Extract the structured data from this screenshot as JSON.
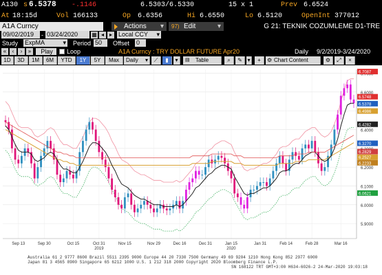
{
  "ticker": {
    "symbol": "A130",
    "last_prefix": "s",
    "last": "6.5378",
    "change": "-.1146",
    "bid_ask": "6.5303/6.5330",
    "size": "15 x 1",
    "prev_label": "Prev",
    "prev": "6.6524",
    "time_prefix": "At",
    "time": "18:15d",
    "vol_label": "Vol",
    "vol": "166133",
    "open_label": "Op",
    "open": "6.6356",
    "high_label": "Hi",
    "high": "6.6550",
    "low_label": "Lo",
    "low": "6.5120",
    "oi_label": "OpenInt",
    "oi": "377012"
  },
  "toolbar": {
    "security": "A1A Curncy",
    "actions_label": "Actions",
    "edit_prefix": "97)",
    "edit_label": "Edit",
    "function_title": "G 21: TEKNIK COZUMLEME D1-TRE"
  },
  "dates": {
    "start": "09/02/2019",
    "end": "03/24/2020",
    "currency": "Local CCY"
  },
  "study": {
    "label": "Study",
    "value": "ExpMA",
    "period_label": "Period",
    "period": "50",
    "offset_label": "Offset",
    "offset": "0"
  },
  "playback": {
    "play_label": "Play",
    "loop_label": "Loop",
    "subtitle": "A1A Curncy : TRY DOLLAR FUTURE Apr20",
    "freq": "Daily",
    "range": "9/2/2019-3/24/2020"
  },
  "tabs": {
    "periods": [
      "1D",
      "3D",
      "1M",
      "6M",
      "YTD",
      "1Y",
      "5Y",
      "Max"
    ],
    "selected": "1Y",
    "freq": "Daily",
    "table_label": "Table",
    "chart_content_label": "Chart Content"
  },
  "chart_data": {
    "type": "line",
    "y_ticks": [
      "6.7000",
      "6.6000",
      "6.5000",
      "6.4000",
      "6.3000",
      "6.2000",
      "6.1000",
      "6.0000",
      "5.9000",
      "5.8000"
    ],
    "ylim": [
      5.82,
      6.72
    ],
    "x_labels": [
      "Sep 13",
      "Sep 30",
      "Oct 15",
      "Oct 31",
      "Nov 15",
      "Nov 29",
      "Dec 16",
      "Dec 31",
      "Jan 15",
      "Jan 31",
      "Feb 14",
      "Feb 28",
      "Mar 16"
    ],
    "x_year_labels": [
      {
        "at": "Oct 31",
        "text": "2019"
      },
      {
        "at": "Jan 15",
        "text": "2020"
      }
    ],
    "price_labels": [
      {
        "value": "6.7087",
        "color": "#e03030"
      },
      {
        "value": "6.5748",
        "color": "#e03030"
      },
      {
        "value": "6.5378",
        "color": "#2060c0"
      },
      {
        "value": "6.4986",
        "color": "#d8a030"
      },
      {
        "value": "6.4282",
        "color": "#222222"
      },
      {
        "value": "6.3270",
        "color": "#2060c0"
      },
      {
        "value": "6.2829",
        "color": "#d04040"
      },
      {
        "value": "6.2527",
        "color": "#d8a030"
      },
      {
        "value": "6.2233",
        "color": "#c08020"
      },
      {
        "value": "6.0621",
        "color": "#20a040"
      }
    ],
    "price_label_y": [
      6.7087,
      6.5748,
      6.5378,
      6.4986,
      6.4282,
      6.327,
      6.2829,
      6.2527,
      6.2233,
      6.0621
    ],
    "closes": [
      6.44,
      6.4,
      6.3,
      6.24,
      6.22,
      6.26,
      6.3,
      6.28,
      6.22,
      6.14,
      6.2,
      6.26,
      6.3,
      6.34,
      6.3,
      6.24,
      6.16,
      6.12,
      6.14,
      6.18,
      6.16,
      6.14,
      6.18,
      6.28,
      6.34,
      6.4,
      6.44,
      6.4,
      6.34,
      6.28,
      6.24,
      6.2,
      6.14,
      6.08,
      6.04,
      6.0,
      5.98,
      6.04,
      6.06,
      6.0,
      5.96,
      5.98,
      6.0,
      6.02,
      6.0,
      5.98,
      5.96,
      5.98,
      6.0,
      5.98,
      5.97,
      5.98,
      6.0,
      6.02,
      5.98,
      6.02,
      6.08,
      6.12,
      6.14,
      6.18,
      6.16,
      6.16,
      6.2,
      6.24,
      6.22,
      6.24,
      6.26,
      6.25,
      6.22,
      6.18,
      6.14,
      6.06,
      6.04,
      6.0,
      5.98,
      6.04,
      6.08,
      6.08,
      6.1,
      6.12,
      6.12,
      6.1,
      6.14,
      6.18,
      6.22,
      6.26,
      6.22,
      6.18,
      6.24,
      6.28,
      6.26,
      6.24,
      6.3,
      6.32,
      6.3,
      6.34,
      6.28,
      6.22,
      6.18,
      6.2,
      6.26,
      6.32,
      6.4,
      6.48,
      6.58,
      6.62,
      6.64,
      6.56,
      6.54
    ],
    "ema_slow": [
      6.4,
      6.39,
      6.38,
      6.37,
      6.36,
      6.35,
      6.34,
      6.33,
      6.32,
      6.31,
      6.3,
      6.29,
      6.28,
      6.27,
      6.26,
      6.25,
      6.24,
      6.24,
      6.23,
      6.23,
      6.22,
      6.22,
      6.21,
      6.21,
      6.21,
      6.21,
      6.21,
      6.21,
      6.21,
      6.21,
      6.21,
      6.21,
      6.21,
      6.21,
      6.21,
      6.21,
      6.21,
      6.21,
      6.21,
      6.21,
      6.21,
      6.21,
      6.21,
      6.21,
      6.21,
      6.21,
      6.21,
      6.21,
      6.21,
      6.21,
      6.21,
      6.21,
      6.21,
      6.21,
      6.21,
      6.21,
      6.21,
      6.21,
      6.22,
      6.22,
      6.22,
      6.22,
      6.22,
      6.22,
      6.23,
      6.23,
      6.23,
      6.23,
      6.23,
      6.23,
      6.23,
      6.22,
      6.22,
      6.22,
      6.21,
      6.21,
      6.21,
      6.21,
      6.21,
      6.21,
      6.21,
      6.21,
      6.21,
      6.21,
      6.21,
      6.22,
      6.22,
      6.22,
      6.22,
      6.22,
      6.23,
      6.23,
      6.23,
      6.23,
      6.24,
      6.24,
      6.24,
      6.24,
      6.24,
      6.24,
      6.25,
      6.26,
      6.27,
      6.28,
      6.29,
      6.3,
      6.31,
      6.32,
      6.33
    ],
    "ema_fast": [
      6.42,
      6.4,
      6.36,
      6.32,
      6.29,
      6.28,
      6.28,
      6.28,
      6.27,
      6.24,
      6.23,
      6.24,
      6.25,
      6.27,
      6.28,
      6.27,
      6.24,
      6.21,
      6.19,
      6.19,
      6.18,
      6.17,
      6.17,
      6.2,
      6.23,
      6.27,
      6.31,
      6.33,
      6.33,
      6.32,
      6.3,
      6.28,
      6.25,
      6.21,
      6.18,
      6.14,
      6.11,
      6.1,
      6.09,
      6.07,
      6.05,
      6.04,
      6.03,
      6.03,
      6.02,
      6.01,
      6.0,
      6.0,
      6.0,
      5.99,
      5.99,
      5.99,
      5.99,
      6.0,
      5.99,
      6.0,
      6.02,
      6.04,
      6.06,
      6.09,
      6.1,
      6.12,
      6.14,
      6.16,
      6.17,
      6.19,
      6.2,
      6.21,
      6.21,
      6.2,
      6.19,
      6.15,
      6.12,
      6.09,
      6.06,
      6.05,
      6.06,
      6.06,
      6.07,
      6.08,
      6.09,
      6.09,
      6.1,
      6.12,
      6.14,
      6.17,
      6.18,
      6.18,
      6.19,
      6.21,
      6.22,
      6.22,
      6.24,
      6.26,
      6.27,
      6.28,
      6.28,
      6.26,
      6.24,
      6.23,
      6.24,
      6.26,
      6.3,
      6.35,
      6.42,
      6.48,
      6.53,
      6.54,
      6.54
    ]
  },
  "footer": {
    "line1": "Australia 61 2 9777 8600  Brazil 5511 2395 9000  Europe 44 20 7330 7500  Germany 49 69 9204 1210  Hong Kong 852 2977 6000",
    "line2": "Japan 81 3 4565 8900        Singapore 65 6212 1000        U.S. 1 212 318 2000       Copyright 2020 Bloomberg Finance L.P.",
    "line3": "SN 168122 TRT  GMT+3:00 H634-6026-2 24-Mar-2020 19:03:18"
  },
  "colors": {
    "bloomberg_orange": "#f6a623",
    "down_candle": "#e0157a",
    "up_candle": "#3090c0",
    "highlight_candle": "#e020e0",
    "ema_fast": "#222222",
    "ema_slow": "#d8a030",
    "band_upper": "#f090a0",
    "band_lower": "#40b060"
  }
}
